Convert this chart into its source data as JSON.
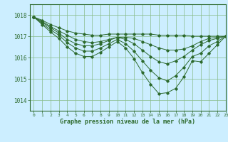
{
  "background_color": "#cceeff",
  "grid_color": "#88bb88",
  "line_color": "#2d6a2d",
  "xlabel": "Graphe pression niveau de la mer (hPa)",
  "xlim": [
    -0.5,
    23
  ],
  "ylim": [
    1013.5,
    1018.5
  ],
  "yticks": [
    1014,
    1015,
    1016,
    1017,
    1018
  ],
  "xticks": [
    0,
    1,
    2,
    3,
    4,
    5,
    6,
    7,
    8,
    9,
    10,
    11,
    12,
    13,
    14,
    15,
    16,
    17,
    18,
    19,
    20,
    21,
    22,
    23
  ],
  "series": [
    [
      1017.9,
      1017.75,
      1017.55,
      1017.4,
      1017.25,
      1017.15,
      1017.1,
      1017.05,
      1017.05,
      1017.1,
      1017.1,
      1017.1,
      1017.1,
      1017.1,
      1017.1,
      1017.05,
      1017.05,
      1017.05,
      1017.05,
      1017.0,
      1017.0,
      1017.0,
      1017.0,
      1017.0
    ],
    [
      1017.9,
      1017.7,
      1017.45,
      1017.25,
      1017.05,
      1016.85,
      1016.75,
      1016.7,
      1016.75,
      1016.85,
      1016.95,
      1016.95,
      1016.9,
      1016.75,
      1016.6,
      1016.45,
      1016.35,
      1016.35,
      1016.4,
      1016.55,
      1016.75,
      1016.9,
      1016.95,
      1017.0
    ],
    [
      1017.9,
      1017.65,
      1017.4,
      1017.15,
      1016.85,
      1016.65,
      1016.55,
      1016.55,
      1016.65,
      1016.8,
      1016.95,
      1016.85,
      1016.65,
      1016.35,
      1016.05,
      1015.8,
      1015.7,
      1015.85,
      1016.05,
      1016.35,
      1016.6,
      1016.8,
      1016.9,
      1017.0
    ],
    [
      1017.9,
      1017.6,
      1017.3,
      1017.05,
      1016.7,
      1016.45,
      1016.3,
      1016.3,
      1016.45,
      1016.65,
      1016.85,
      1016.65,
      1016.3,
      1015.85,
      1015.4,
      1015.05,
      1014.9,
      1015.15,
      1015.55,
      1016.05,
      1016.2,
      1016.55,
      1016.75,
      1017.0
    ],
    [
      1017.9,
      1017.55,
      1017.2,
      1016.9,
      1016.5,
      1016.2,
      1016.05,
      1016.05,
      1016.25,
      1016.5,
      1016.75,
      1016.45,
      1015.95,
      1015.3,
      1014.75,
      1014.3,
      1014.35,
      1014.55,
      1015.1,
      1015.85,
      1015.8,
      1016.2,
      1016.6,
      1017.0
    ]
  ]
}
